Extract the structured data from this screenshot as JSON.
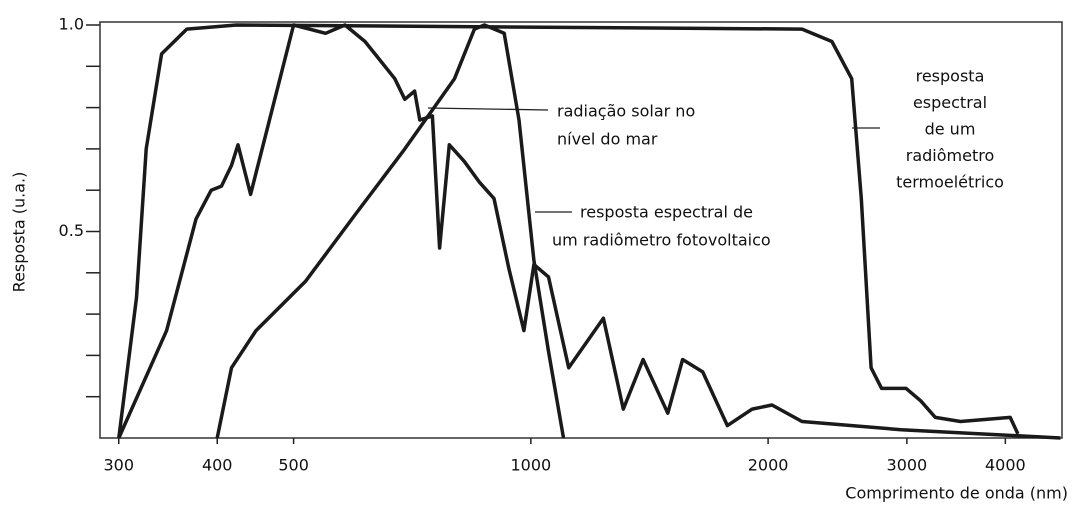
{
  "chart_data": {
    "type": "line",
    "ylabel": "Resposta (u.a.)",
    "xlabel": "Comprimento de onda (nm)",
    "xscale": "log",
    "xlim": [
      284,
      4720
    ],
    "xticks": [
      300,
      400,
      500,
      1000,
      2000,
      3000,
      4000
    ],
    "ylim": [
      0,
      1.0
    ],
    "yticks": [
      {
        "value": 1,
        "label": "1.0"
      },
      0.5
    ],
    "yminorticks": [
      0.1,
      0.2,
      0.3,
      0.4,
      0.6,
      0.7,
      0.8,
      0.9
    ],
    "series": [
      {
        "color": "#1a1a1a",
        "x": [
          300,
          345,
          376,
          393,
          405,
          417,
          425,
          441,
          500,
          549,
          581,
          616,
          672,
          692,
          712,
          723,
          750,
          766,
          788,
          823,
          860,
          898,
          938,
          980,
          1009,
          1053,
          1117,
          1236,
          1310,
          1388,
          1492,
          1558,
          1652,
          1776,
          1909,
          2023,
          2208,
          2950,
          4700
        ],
        "values": [
          0,
          0.26,
          0.53,
          0.6,
          0.61,
          0.66,
          0.71,
          0.59,
          1.0,
          0.98,
          1.0,
          0.96,
          0.87,
          0.82,
          0.84,
          0.77,
          0.78,
          0.46,
          0.71,
          0.67,
          0.62,
          0.58,
          0.41,
          0.26,
          0.42,
          0.39,
          0.17,
          0.29,
          0.07,
          0.19,
          0.06,
          0.19,
          0.16,
          0.03,
          0.07,
          0.08,
          0.04,
          0.02,
          0
        ]
      },
      {
        "color": "#1a1a1a",
        "x": [
          400,
          417,
          448,
          518,
          598,
          692,
          800,
          848,
          873,
          925,
          966,
          1009,
          1053,
          1100
        ],
        "values": [
          0,
          0.17,
          0.26,
          0.38,
          0.54,
          0.7,
          0.87,
          0.99,
          1.0,
          0.98,
          0.77,
          0.43,
          0.21,
          0
        ]
      },
      {
        "color": "#1a1a1a",
        "x": [
          300,
          316,
          325,
          340,
          366,
          423,
          2208,
          2410,
          2553,
          2626,
          2702,
          2786,
          2993,
          3124,
          3260,
          3509,
          4057,
          4150
        ],
        "values": [
          0,
          0.34,
          0.7,
          0.93,
          0.99,
          1.0,
          0.99,
          0.96,
          0.87,
          0.58,
          0.17,
          0.12,
          0.12,
          0.09,
          0.05,
          0.04,
          0.05,
          0.01
        ]
      }
    ],
    "annotations": [
      [
        "radiação solar no",
        "nível do mar"
      ],
      [
        "resposta espectral de",
        "um radiômetro fotovoltaico"
      ],
      [
        "resposta",
        "espectral",
        "de um",
        "radiômetro",
        "termoelétrico"
      ]
    ]
  }
}
